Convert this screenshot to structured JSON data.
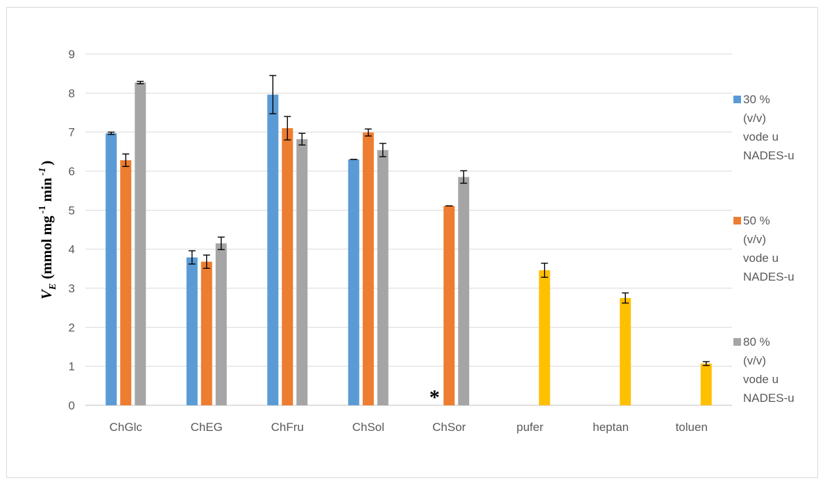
{
  "chart_data": {
    "type": "bar",
    "title": "",
    "xlabel": "",
    "ylabel": {
      "v": "V",
      "sub": "E",
      "units": "(mmol mg",
      "exp1": "-1",
      "min": " min",
      "exp2": "-1",
      "close": ")"
    },
    "ylim": [
      0,
      9
    ],
    "yticks": [
      0,
      1,
      2,
      3,
      4,
      5,
      6,
      7,
      8,
      9
    ],
    "categories": [
      "ChGlc",
      "ChEG",
      "ChFru",
      "ChSol",
      "ChSor",
      "pufer",
      "heptan",
      "toluen"
    ],
    "series": [
      {
        "name": "30 % (v/v) vode u NADES-u",
        "name_lines": [
          "30 %",
          "(v/v)",
          "vode u",
          "NADES-u"
        ],
        "color": "#5b9bd5",
        "values": [
          6.97,
          3.79,
          7.96,
          6.3,
          null,
          null,
          null,
          null
        ],
        "errors": [
          0.03,
          0.17,
          0.49,
          0.0,
          null,
          null,
          null,
          null
        ]
      },
      {
        "name": "50 % (v/v) vode u NADES-u",
        "name_lines": [
          "50 %",
          "(v/v)",
          "vode u",
          "NADES-u"
        ],
        "color": "#ed7d31",
        "values": [
          6.28,
          3.68,
          7.1,
          6.99,
          5.11,
          null,
          null,
          null
        ],
        "errors": [
          0.16,
          0.17,
          0.3,
          0.09,
          0.0,
          null,
          null,
          null
        ]
      },
      {
        "name": "80 % (v/v) vode u NADES-u",
        "name_lines": [
          "80 %",
          "(v/v)",
          "vode u",
          "NADES-u"
        ],
        "color": "#a5a5a5",
        "values": [
          8.27,
          4.15,
          6.82,
          6.54,
          5.85,
          null,
          null,
          null
        ],
        "errors": [
          0.03,
          0.16,
          0.15,
          0.17,
          0.16,
          null,
          null,
          null
        ]
      }
    ],
    "extra_bars": {
      "color": "#ffc000",
      "position": "series-2-slot",
      "values": [
        null,
        null,
        null,
        null,
        null,
        3.46,
        2.75,
        1.07
      ],
      "errors": [
        null,
        null,
        null,
        null,
        null,
        0.18,
        0.13,
        0.05
      ]
    },
    "annotations": [
      {
        "category": "ChSor",
        "series": 0,
        "text": "*"
      }
    ],
    "grid": true,
    "legend_position": "right"
  }
}
